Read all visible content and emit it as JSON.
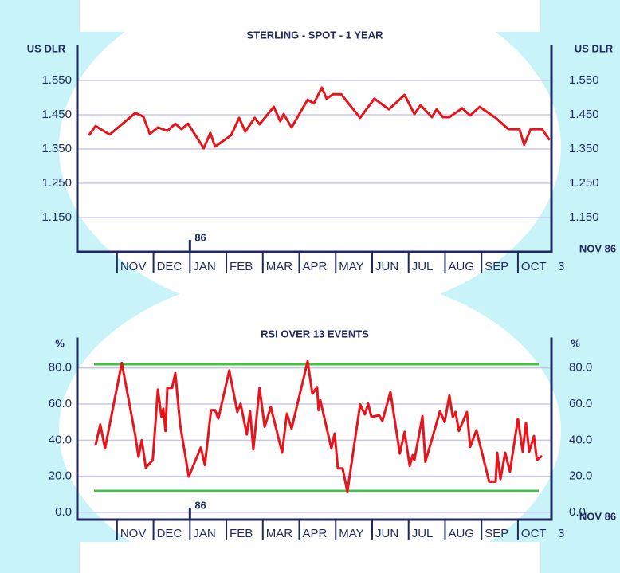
{
  "chart_data": [
    {
      "type": "line",
      "title": "STERLING - SPOT - 1 YEAR",
      "y_label": "US DLR",
      "color": "#e8141c",
      "xlim": [
        -1.09,
        11.92
      ],
      "ylim": [
        1.05,
        1.65
      ],
      "yticks": [
        {
          "value": 1.55,
          "label": "1.550"
        },
        {
          "value": 1.45,
          "label": "1.450"
        },
        {
          "value": 1.35,
          "label": "1.350"
        },
        {
          "value": 1.25,
          "label": "1.250"
        },
        {
          "value": 1.15,
          "label": "1.150"
        }
      ],
      "xticks": [
        {
          "value": 0,
          "label": "NOV"
        },
        {
          "value": 1,
          "label": "DEC"
        },
        {
          "value": 2,
          "label": "JAN"
        },
        {
          "value": 3,
          "label": "FEB"
        },
        {
          "value": 4,
          "label": "MAR"
        },
        {
          "value": 5,
          "label": "APR"
        },
        {
          "value": 6,
          "label": "MAY"
        },
        {
          "value": 7,
          "label": "JUN"
        },
        {
          "value": 8,
          "label": "JUL"
        },
        {
          "value": 9,
          "label": "AUG"
        },
        {
          "value": 10,
          "label": "SEP"
        },
        {
          "value": 11,
          "label": "OCT"
        }
      ],
      "year_tick": {
        "value": 2,
        "label": "86"
      },
      "end_label": "3",
      "end_note": "NOV 86",
      "grid": true,
      "x": [
        -0.77,
        -0.59,
        -0.2,
        0.5,
        0.72,
        0.9,
        1.12,
        1.38,
        1.6,
        1.77,
        1.95,
        2.38,
        2.56,
        2.69,
        3.13,
        3.35,
        3.52,
        3.78,
        3.91,
        4.3,
        4.48,
        4.57,
        4.79,
        5.23,
        5.4,
        5.62,
        5.75,
        5.93,
        6.15,
        6.67,
        7.06,
        7.46,
        7.89,
        8.16,
        8.33,
        8.64,
        8.77,
        8.94,
        9.12,
        9.47,
        9.69,
        9.95,
        10.39,
        10.74,
        11.04,
        11.17,
        11.35,
        11.66,
        11.87
      ],
      "values": [
        1.39,
        1.417,
        1.392,
        1.455,
        1.445,
        1.394,
        1.413,
        1.403,
        1.424,
        1.408,
        1.424,
        1.352,
        1.397,
        1.357,
        1.39,
        1.441,
        1.401,
        1.441,
        1.422,
        1.473,
        1.431,
        1.452,
        1.413,
        1.494,
        1.483,
        1.529,
        1.497,
        1.51,
        1.51,
        1.441,
        1.497,
        1.466,
        1.508,
        1.452,
        1.478,
        1.443,
        1.466,
        1.443,
        1.443,
        1.469,
        1.448,
        1.473,
        1.441,
        1.408,
        1.408,
        1.362,
        1.408,
        1.408,
        1.376
      ]
    },
    {
      "type": "line",
      "title": "RSI OVER 13 EVENTS",
      "y_label": "%",
      "color": "#e8141c",
      "xlim": [
        -1.09,
        11.92
      ],
      "ylim": [
        -4,
        96
      ],
      "yticks": [
        {
          "value": 80,
          "label": "80.0"
        },
        {
          "value": 60,
          "label": "60.0"
        },
        {
          "value": 40,
          "label": "40.0"
        },
        {
          "value": 20,
          "label": "20.0"
        },
        {
          "value": 0,
          "label": "0.0"
        }
      ],
      "xticks": [
        {
          "value": 0,
          "label": "NOV"
        },
        {
          "value": 1,
          "label": "DEC"
        },
        {
          "value": 2,
          "label": "JAN"
        },
        {
          "value": 3,
          "label": "FEB"
        },
        {
          "value": 4,
          "label": "MAR"
        },
        {
          "value": 5,
          "label": "APR"
        },
        {
          "value": 6,
          "label": "MAY"
        },
        {
          "value": 7,
          "label": "JUN"
        },
        {
          "value": 8,
          "label": "JUL"
        },
        {
          "value": 9,
          "label": "AUG"
        },
        {
          "value": 10,
          "label": "SEP"
        },
        {
          "value": 11,
          "label": "OCT"
        }
      ],
      "year_tick": {
        "value": 2,
        "label": "86"
      },
      "end_label": "3",
      "end_note": "NOV 86",
      "grid": true,
      "reference_lines": [
        82,
        12
      ],
      "reference_color": "#3cc83c",
      "x": [
        -0.59,
        -0.46,
        -0.33,
        0.13,
        0.5,
        0.59,
        0.68,
        0.79,
        0.98,
        1.12,
        1.22,
        1.27,
        1.33,
        1.38,
        1.51,
        1.6,
        1.73,
        1.97,
        2.3,
        2.41,
        2.58,
        2.69,
        2.78,
        3.08,
        3.3,
        3.39,
        3.56,
        3.65,
        3.74,
        3.91,
        4.05,
        4.22,
        4.53,
        4.66,
        4.79,
        5.23,
        5.36,
        5.49,
        5.53,
        5.58,
        5.88,
        5.97,
        6.06,
        6.19,
        6.32,
        6.67,
        6.8,
        6.89,
        6.98,
        7.19,
        7.28,
        7.5,
        7.76,
        7.89,
        8.03,
        8.11,
        8.16,
        8.38,
        8.46,
        8.86,
        8.99,
        9.12,
        9.21,
        9.29,
        9.38,
        9.6,
        9.69,
        9.86,
        10.21,
        10.39,
        10.43,
        10.52,
        10.65,
        10.78,
        11.0,
        11.13,
        11.22,
        11.31,
        11.44,
        11.52,
        11.66
      ],
      "values": [
        37.2,
        48.7,
        35.4,
        82.8,
        42.8,
        30.8,
        40.0,
        24.8,
        29.0,
        68.0,
        52.9,
        57.5,
        45.1,
        69.0,
        69.0,
        77.2,
        48.7,
        19.8,
        35.9,
        26.2,
        56.6,
        56.6,
        52.0,
        78.6,
        55.6,
        60.2,
        43.2,
        56.1,
        34.9,
        69.0,
        47.4,
        58.4,
        33.1,
        54.7,
        46.4,
        83.7,
        65.7,
        69.4,
        56.6,
        62.1,
        35.4,
        43.7,
        24.4,
        24.4,
        11.5,
        59.8,
        54.3,
        60.2,
        52.9,
        53.8,
        50.6,
        66.7,
        32.6,
        44.6,
        25.7,
        31.7,
        29.0,
        53.3,
        28.0,
        56.1,
        50.1,
        64.8,
        52.9,
        55.6,
        45.1,
        55.6,
        36.3,
        45.5,
        17.0,
        17.0,
        33.1,
        18.4,
        33.1,
        22.5,
        52.0,
        33.6,
        49.7,
        33.6,
        42.3,
        29.0,
        31.3
      ]
    }
  ]
}
